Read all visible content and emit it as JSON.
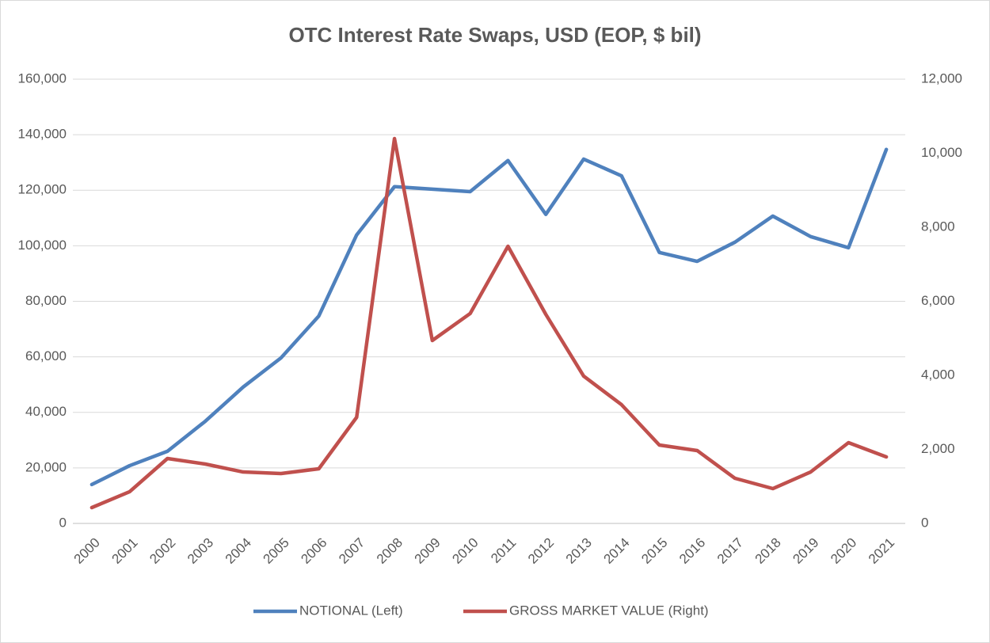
{
  "chart_data": {
    "type": "line",
    "title": "OTC Interest Rate Swaps, USD (EOP, $ bil)",
    "categories": [
      "2000",
      "2001",
      "2002",
      "2003",
      "2004",
      "2005",
      "2006",
      "2007",
      "2008",
      "2009",
      "2010",
      "2011",
      "2012",
      "2013",
      "2014",
      "2015",
      "2016",
      "2017",
      "2018",
      "2019",
      "2020",
      "2021"
    ],
    "series": [
      {
        "name": "NOTIONAL (Left)",
        "color": "#4f81bd",
        "values": [
          14000,
          20800,
          26000,
          36800,
          49100,
          59600,
          74700,
          103900,
          121300,
          120400,
          119500,
          130700,
          111300,
          131200,
          125200,
          97600,
          94400,
          101300,
          110700,
          103300,
          99300,
          134700
        ]
      },
      {
        "name": "GROSS MARKET VALUE (Right)",
        "color": "#c0504d",
        "axis": "y2",
        "values": [
          428,
          856,
          1754,
          1604,
          1390,
          1348,
          1476,
          2866,
          10396,
          4941,
          5669,
          7487,
          5647,
          3979,
          3209,
          2118,
          1968,
          1219,
          941,
          1390,
          2182,
          1797
        ]
      }
    ],
    "ylim": [
      0,
      160000
    ],
    "yticks": [
      0,
      {
        "value": 20000,
        "label": "20,000"
      },
      {
        "value": 40000,
        "label": "40,000"
      },
      {
        "value": 60000,
        "label": "60,000"
      },
      {
        "value": 80000,
        "label": "80,000"
      },
      {
        "value": 100000,
        "label": "100,000"
      },
      {
        "value": 120000,
        "label": "120,000"
      },
      {
        "value": 140000,
        "label": "140,000"
      },
      {
        "value": 160000,
        "label": "160,000"
      }
    ],
    "y2lim": [
      0,
      12000
    ],
    "y2ticks": [
      0,
      {
        "value": 2000,
        "label": "2,000"
      },
      {
        "value": 4000,
        "label": "4,000"
      },
      {
        "value": 6000,
        "label": "6,000"
      },
      {
        "value": 8000,
        "label": "8,000"
      },
      {
        "value": 10000,
        "label": "10,000"
      },
      {
        "value": 12000,
        "label": "12,000"
      }
    ],
    "grid": true,
    "legend": "bottom"
  }
}
